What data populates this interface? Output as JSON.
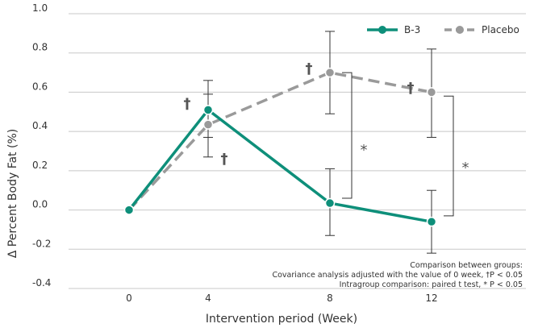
{
  "chart_data": {
    "type": "line",
    "xlabel": "Intervention period (Week)",
    "ylabel": "Δ Percent Body  Fat (%)",
    "x": [
      0,
      4,
      8,
      12
    ],
    "xticks": [
      "0",
      "4",
      "8",
      "12"
    ],
    "ylim": [
      -0.4,
      1.0
    ],
    "yticks": [
      "1.0",
      "0.8",
      "0.6",
      "0.4",
      "0.2",
      "0.0",
      "-0.2",
      "-0.4"
    ],
    "grid": "horizontal",
    "legend_position": "top-right",
    "series": [
      {
        "name": "B-3",
        "color": "#0e8f7a",
        "line_style": "solid",
        "values": [
          0.0,
          0.51,
          0.035,
          -0.06
        ],
        "err_upper": [
          0.0,
          0.59,
          0.21,
          0.1
        ],
        "err_lower": [
          0.0,
          0.37,
          -0.13,
          -0.22
        ]
      },
      {
        "name": "Placebo",
        "color": "#9a9a9a",
        "line_style": "dashed",
        "values": [
          0.0,
          0.435,
          0.7,
          0.6
        ],
        "err_upper": [
          0.0,
          0.66,
          0.91,
          0.82
        ],
        "err_lower": [
          0.0,
          0.27,
          0.49,
          0.37
        ]
      }
    ],
    "annotations": {
      "dagger_symbol": "†",
      "daggers": [
        {
          "series": "B-3",
          "x": 4,
          "y": 0.55,
          "side": "left"
        },
        {
          "series": "Placebo",
          "x": 4,
          "y": 0.27,
          "side": "right"
        },
        {
          "series": "Placebo",
          "x": 8,
          "y": 0.73,
          "side": "left"
        },
        {
          "series": "Placebo",
          "x": 12,
          "y": 0.63,
          "side": "left"
        }
      ],
      "star_symbol": "*",
      "brackets": [
        {
          "x": 8,
          "y_top": 0.7,
          "y_bottom": 0.06,
          "label_y": 0.33
        },
        {
          "x": 12,
          "y_top": 0.58,
          "y_bottom": -0.03,
          "label_y": 0.24
        }
      ]
    },
    "notes": [
      "Comparison between groups:",
      "Covariance analysis adjusted with the value of 0 week, †P < 0.05",
      "Intragroup comparison: paired t test, * P < 0.05"
    ]
  }
}
